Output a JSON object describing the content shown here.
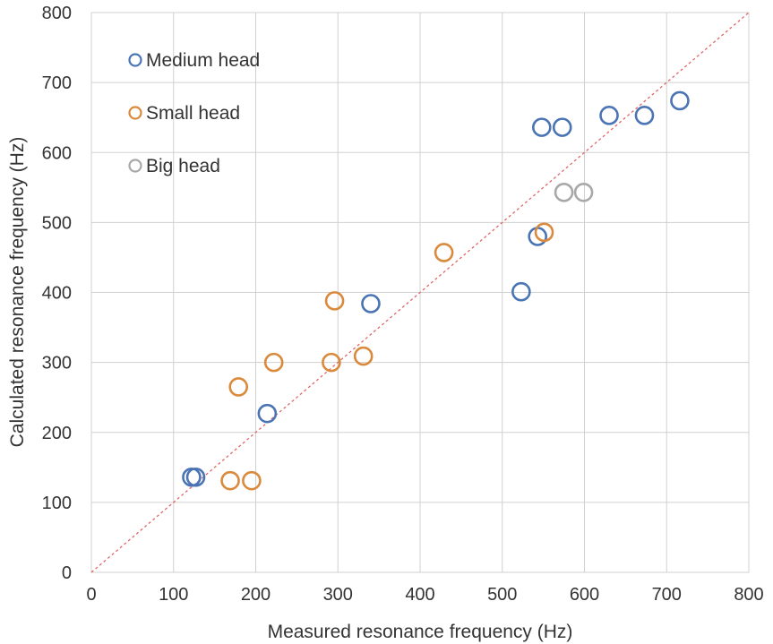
{
  "chart_data": {
    "type": "scatter",
    "xlabel": "Measured resonance frequency (Hz)",
    "ylabel": "Calculated resonance frequency (Hz)",
    "xlim": [
      0,
      800
    ],
    "ylim": [
      0,
      800
    ],
    "x_ticks": [
      "0",
      "100",
      "200",
      "300",
      "400",
      "500",
      "600",
      "700",
      "800"
    ],
    "y_ticks": [
      "0",
      "100",
      "200",
      "300",
      "400",
      "500",
      "600",
      "700",
      "800"
    ],
    "grid": true,
    "legend_position": "top-left",
    "reference_line": {
      "style": "dashed",
      "color": "#e06666",
      "from": [
        0,
        0
      ],
      "to": [
        800,
        800
      ]
    },
    "series": [
      {
        "name": "Medium head",
        "color": "#4a74b4",
        "points": [
          [
            122,
            136
          ],
          [
            127,
            136
          ],
          [
            214,
            227
          ],
          [
            340,
            384
          ],
          [
            523,
            401
          ],
          [
            543,
            480
          ],
          [
            548,
            636
          ],
          [
            573,
            636
          ],
          [
            630,
            653
          ],
          [
            673,
            653
          ],
          [
            716,
            674
          ]
        ]
      },
      {
        "name": "Small head",
        "color": "#d98a3c",
        "points": [
          [
            169,
            131
          ],
          [
            195,
            131
          ],
          [
            179,
            265
          ],
          [
            222,
            300
          ],
          [
            292,
            300
          ],
          [
            296,
            388
          ],
          [
            331,
            309
          ],
          [
            429,
            457
          ],
          [
            551,
            486
          ]
        ]
      },
      {
        "name": "Big head",
        "color": "#a8a8a8",
        "points": [
          [
            575,
            543
          ],
          [
            599,
            543
          ]
        ]
      }
    ]
  }
}
